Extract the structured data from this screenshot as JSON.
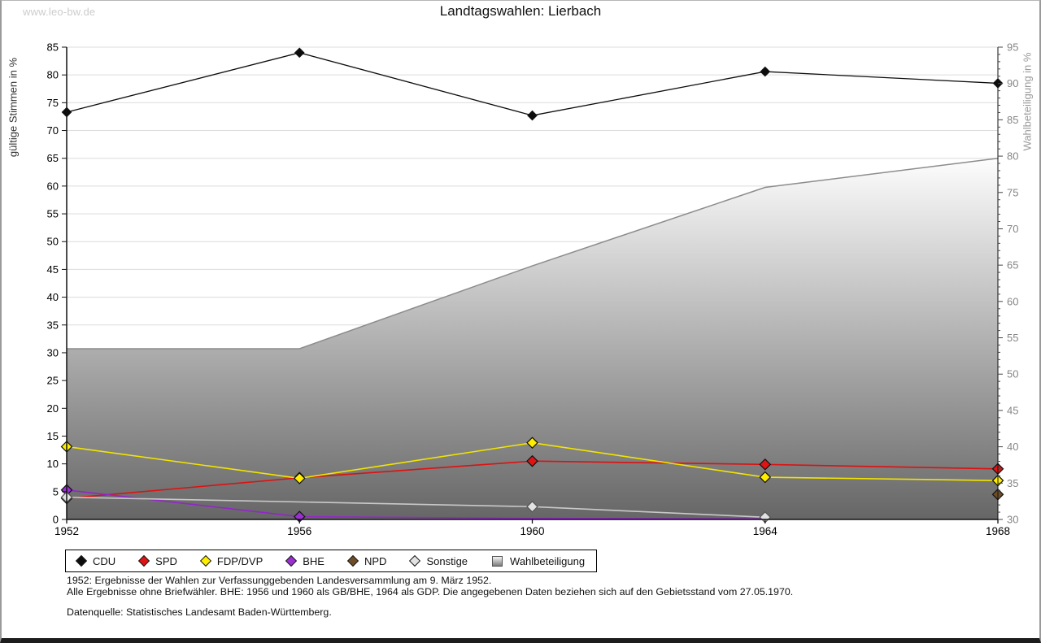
{
  "watermark": "www.leo-bw.de",
  "chart_data": {
    "type": "line",
    "title": "Landtagswahlen: Lierbach",
    "x": [
      1952,
      1956,
      1960,
      1964,
      1968
    ],
    "ylabel_left": "gültige Stimmen in %",
    "ylabel_right": "Wahlbeteiligung in %",
    "ylim_left": [
      0,
      85
    ],
    "ylim_right": [
      30,
      95
    ],
    "ytick_step": 5,
    "grid": true,
    "legend_position": "bottom",
    "series": [
      {
        "name": "CDU",
        "color": "#0d0d0d",
        "fill": "#0d0d0d",
        "axis": "left",
        "type": "line",
        "values": [
          73.3,
          84.0,
          72.7,
          80.6,
          78.5
        ]
      },
      {
        "name": "SPD",
        "color": "#dd1111",
        "fill": "#e01414",
        "axis": "left",
        "type": "line",
        "values": [
          3.8,
          7.5,
          10.5,
          9.9,
          9.1
        ]
      },
      {
        "name": "FDP/DVP",
        "color": "#f2e400",
        "fill": "#ffee00",
        "axis": "left",
        "type": "line",
        "values": [
          13.1,
          7.4,
          13.8,
          7.6,
          7.0
        ]
      },
      {
        "name": "BHE",
        "color": "#9326c9",
        "fill": "#9b2fd2",
        "axis": "left",
        "type": "line",
        "values": [
          5.3,
          0.5,
          0.2,
          0.1,
          null
        ],
        "markers": [
          true,
          true,
          false,
          false,
          false
        ]
      },
      {
        "name": "NPD",
        "color": "#6f4e27",
        "fill": "#6f4e27",
        "axis": "left",
        "type": "line",
        "values": [
          null,
          null,
          null,
          null,
          4.5
        ]
      },
      {
        "name": "Sonstige",
        "color": "#c9c9c9",
        "fill": "#e2e2e2",
        "axis": "left",
        "type": "line",
        "values": [
          4.0,
          null,
          2.3,
          0.4,
          null
        ]
      },
      {
        "name": "Wahlbeteiligung",
        "color": "#8c8c8c",
        "fill": "gradient",
        "axis": "right",
        "type": "area",
        "values": [
          53.5,
          53.5,
          64.9,
          75.7,
          79.7
        ]
      }
    ]
  },
  "footnotes": {
    "line1": "1952: Ergebnisse der Wahlen zur Verfassunggebenden Landesversammlung am 9. März 1952.",
    "line2": "Alle Ergebnisse ohne Briefwähler. BHE: 1956 und 1960 als GB/BHE, 1964 als GDP. Die angegebenen Daten beziehen sich auf den Gebietsstand vom 27.05.1970.",
    "source": "Datenquelle: Statistisches Landesamt Baden-Württemberg."
  }
}
